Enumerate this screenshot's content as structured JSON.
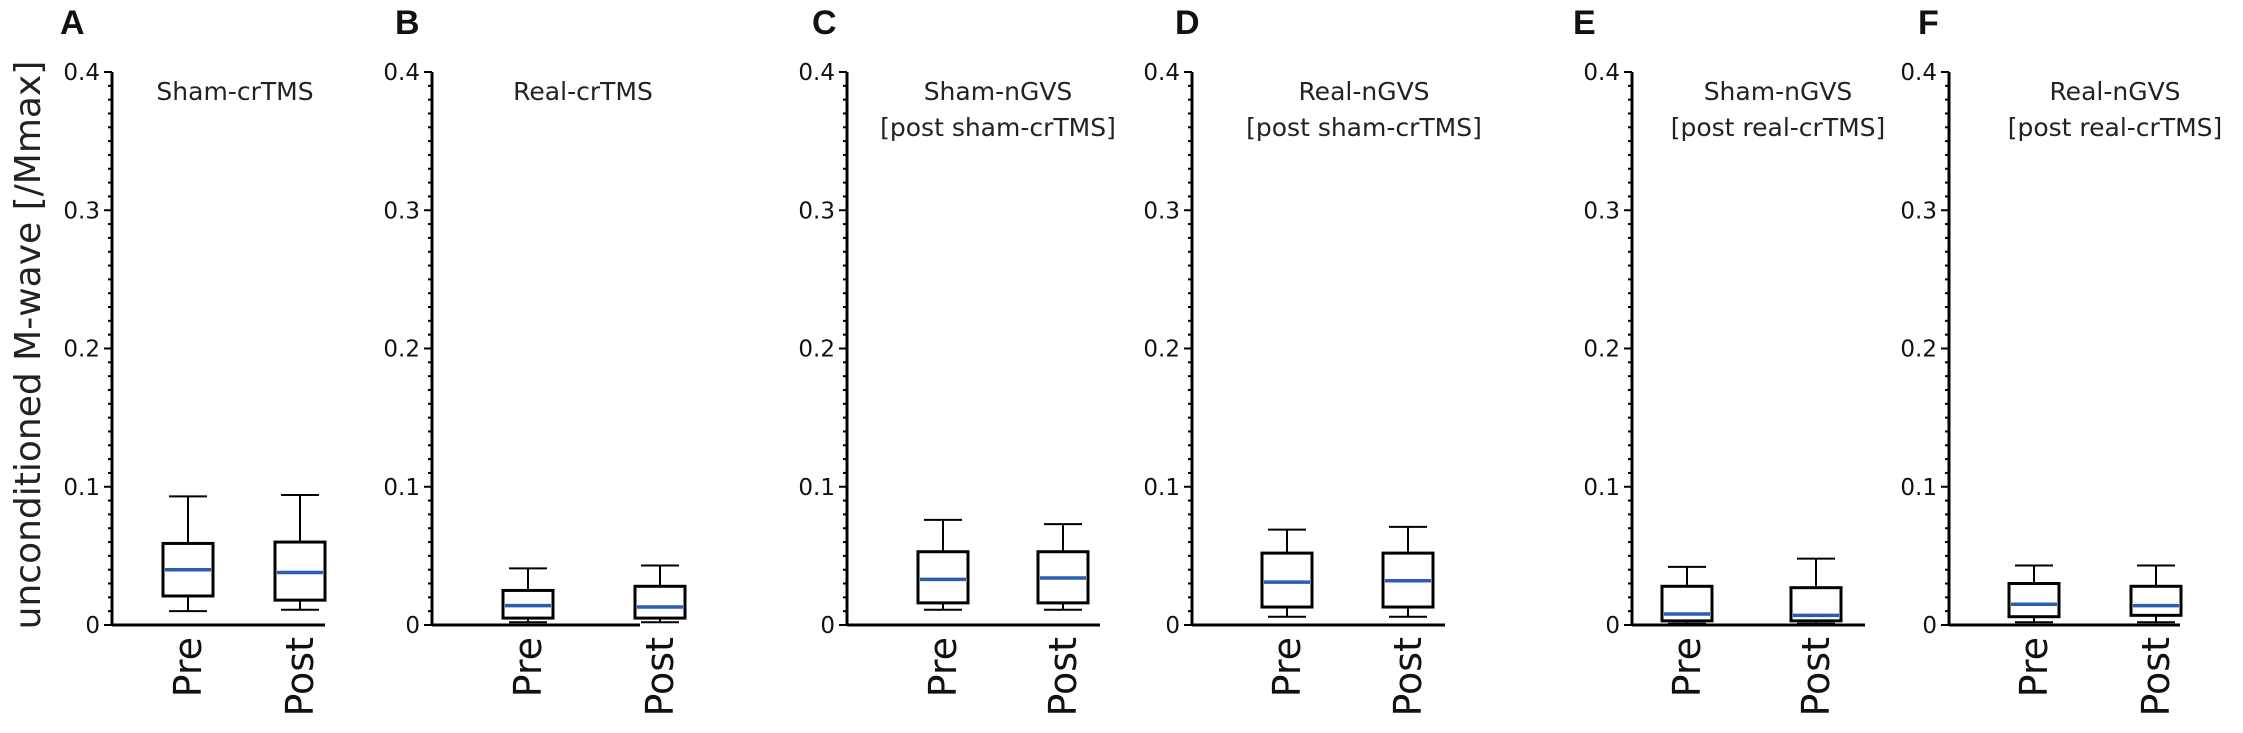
{
  "figure": {
    "ylabel": "unconditioned M-wave [/Mmax]"
  },
  "colors": {
    "median": "#2b5fad",
    "box": "#000000",
    "axis": "#000000"
  },
  "chart_data": [
    {
      "panel": "A",
      "type": "box",
      "title": [
        "Sham-crTMS"
      ],
      "categories": [
        "Pre",
        "Post"
      ],
      "ylim": [
        0,
        0.4
      ],
      "yticks": [
        0,
        0.1,
        0.2,
        0.3,
        0.4
      ],
      "ytick_labels": [
        "0",
        "0.1",
        "0.2",
        "0.3",
        "0.4"
      ],
      "boxes": [
        {
          "min": 0.01,
          "q1": 0.021,
          "median": 0.04,
          "q3": 0.059,
          "max": 0.093
        },
        {
          "min": 0.011,
          "q1": 0.018,
          "median": 0.038,
          "q3": 0.06,
          "max": 0.094
        }
      ]
    },
    {
      "panel": "B",
      "type": "box",
      "title": [
        "Real-crTMS"
      ],
      "categories": [
        "Pre",
        "Post"
      ],
      "ylim": [
        0,
        0.4
      ],
      "yticks": [
        0,
        0.1,
        0.2,
        0.3,
        0.4
      ],
      "ytick_labels": [
        "0",
        "0.1",
        "0.2",
        "0.3",
        "0.4"
      ],
      "boxes": [
        {
          "min": 0.002,
          "q1": 0.005,
          "median": 0.014,
          "q3": 0.025,
          "max": 0.041
        },
        {
          "min": 0.002,
          "q1": 0.005,
          "median": 0.013,
          "q3": 0.028,
          "max": 0.043
        }
      ]
    },
    {
      "panel": "C",
      "type": "box",
      "title": [
        "Sham-nGVS",
        "[post sham-crTMS]"
      ],
      "categories": [
        "Pre",
        "Post"
      ],
      "ylim": [
        0,
        0.4
      ],
      "yticks": [
        0,
        0.1,
        0.2,
        0.3,
        0.4
      ],
      "ytick_labels": [
        "0",
        "0.1",
        "0.2",
        "0.3",
        "0.4"
      ],
      "boxes": [
        {
          "min": 0.011,
          "q1": 0.016,
          "median": 0.033,
          "q3": 0.053,
          "max": 0.076
        },
        {
          "min": 0.011,
          "q1": 0.016,
          "median": 0.034,
          "q3": 0.053,
          "max": 0.073
        }
      ]
    },
    {
      "panel": "D",
      "type": "box",
      "title": [
        "Real-nGVS",
        "[post sham-crTMS]"
      ],
      "categories": [
        "Pre",
        "Post"
      ],
      "ylim": [
        0,
        0.4
      ],
      "yticks": [
        0,
        0.1,
        0.2,
        0.3,
        0.4
      ],
      "ytick_labels": [
        "0",
        "0.1",
        "0.2",
        "0.3",
        "0.4"
      ],
      "boxes": [
        {
          "min": 0.006,
          "q1": 0.013,
          "median": 0.031,
          "q3": 0.052,
          "max": 0.069
        },
        {
          "min": 0.006,
          "q1": 0.013,
          "median": 0.032,
          "q3": 0.052,
          "max": 0.071
        }
      ]
    },
    {
      "panel": "E",
      "type": "box",
      "title": [
        "Sham-nGVS",
        "[post real-crTMS]"
      ],
      "categories": [
        "Pre",
        "Post"
      ],
      "ylim": [
        0,
        0.4
      ],
      "yticks": [
        0,
        0.1,
        0.2,
        0.3,
        0.4
      ],
      "ytick_labels": [
        "0",
        "0.1",
        "0.2",
        "0.3",
        "0.4"
      ],
      "boxes": [
        {
          "min": 0.001,
          "q1": 0.003,
          "median": 0.008,
          "q3": 0.028,
          "max": 0.042
        },
        {
          "min": 0.001,
          "q1": 0.003,
          "median": 0.007,
          "q3": 0.027,
          "max": 0.048
        }
      ]
    },
    {
      "panel": "F",
      "type": "box",
      "title": [
        "Real-nGVS",
        "[post real-crTMS]"
      ],
      "categories": [
        "Pre",
        "Post"
      ],
      "ylim": [
        0,
        0.4
      ],
      "yticks": [
        0,
        0.1,
        0.2,
        0.3,
        0.4
      ],
      "ytick_labels": [
        "0",
        "0.1",
        "0.2",
        "0.3",
        "0.4"
      ],
      "boxes": [
        {
          "min": 0.002,
          "q1": 0.006,
          "median": 0.015,
          "q3": 0.03,
          "max": 0.043
        },
        {
          "min": 0.002,
          "q1": 0.007,
          "median": 0.014,
          "q3": 0.028,
          "max": 0.043
        }
      ]
    }
  ]
}
